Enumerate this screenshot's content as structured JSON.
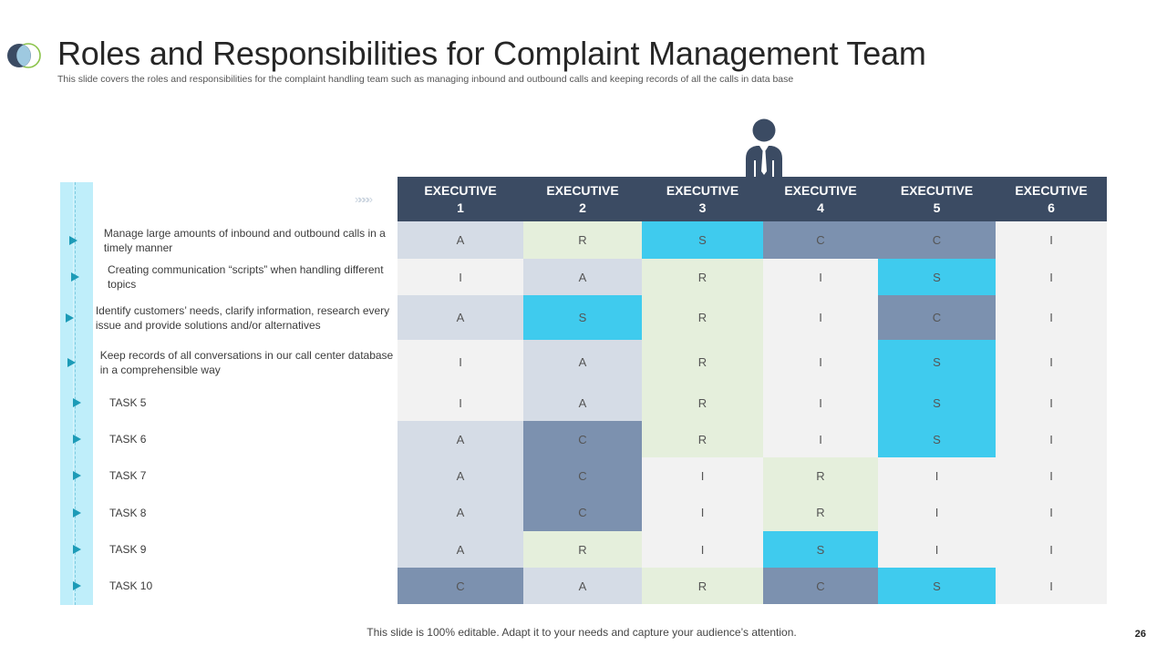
{
  "header": {
    "title": "Roles and Responsibilities for Complaint Management Team",
    "subtitle": "This slide covers the roles and responsibilities  for the complaint handling  team such as managing inbound and outbound calls and  keeping records of all the calls  in data base"
  },
  "icons": {
    "logo": "overlapping-circles-logo",
    "person": "businessman-icon",
    "row_marker": "play-triangle-icon",
    "chevrons": "chevrons-right-icon"
  },
  "colors": {
    "header_bg": "#3b4b63",
    "A": "#d5dce6",
    "R": "#e5efdc",
    "S": "#3fcbee",
    "C": "#7c91af",
    "I": "#f2f2f2",
    "accent": "#1c9bb7"
  },
  "chevrons_text": "»»»»",
  "matrix": {
    "columns": [
      {
        "line1": "EXECUTIVE",
        "line2": "1"
      },
      {
        "line1": "EXECUTIVE",
        "line2": "2"
      },
      {
        "line1": "EXECUTIVE",
        "line2": "3"
      },
      {
        "line1": "EXECUTIVE",
        "line2": "4"
      },
      {
        "line1": "EXECUTIVE",
        "line2": "5"
      },
      {
        "line1": "EXECUTIVE",
        "line2": "6"
      }
    ],
    "rows": [
      {
        "task": "Manage large amounts of inbound and outbound calls in a timely manner",
        "values": [
          "A",
          "R",
          "S",
          "C",
          "C",
          "I"
        ]
      },
      {
        "task": "Creating  communication “scripts” when handling different topics",
        "values": [
          "I",
          "A",
          "R",
          "I",
          "S",
          "I"
        ]
      },
      {
        "task": "Identify customers’ needs, clarify information, research every issue and provide solutions and/or alternatives",
        "values": [
          "A",
          "S",
          "R",
          "I",
          "C",
          "I"
        ]
      },
      {
        "task": "Keep records of all conversations in our call center database in a comprehensible way",
        "values": [
          "I",
          "A",
          "R",
          "I",
          "S",
          "I"
        ]
      },
      {
        "task": "TASK 5",
        "values": [
          "I",
          "A",
          "R",
          "I",
          "S",
          "I"
        ]
      },
      {
        "task": "TASK 6",
        "values": [
          "A",
          "C",
          "R",
          "I",
          "S",
          "I"
        ]
      },
      {
        "task": "TASK 7",
        "values": [
          "A",
          "C",
          "I",
          "R",
          "I",
          "I"
        ]
      },
      {
        "task": "TASK 8",
        "values": [
          "A",
          "C",
          "I",
          "R",
          "I",
          "I"
        ]
      },
      {
        "task": "TASK 9",
        "values": [
          "A",
          "R",
          "I",
          "S",
          "I",
          "I"
        ]
      },
      {
        "task": "TASK 10",
        "values": [
          "C",
          "A",
          "R",
          "C",
          "S",
          "I"
        ]
      }
    ]
  },
  "footer": {
    "note": "This slide is 100% editable. Adapt it to your needs and capture your audience’s attention.",
    "page_number": "26"
  }
}
